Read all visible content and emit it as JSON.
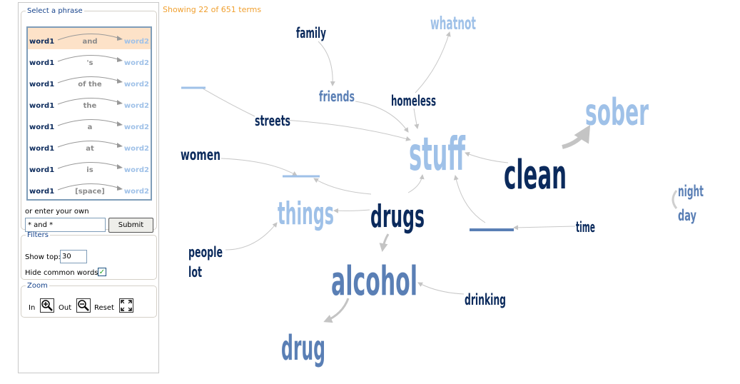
{
  "status_text": "Showing 22 of 651 terms",
  "phrase_panel": {
    "legend": "Select a phrase",
    "word1": "word1",
    "word2": "word2",
    "phrases": [
      "and",
      "'s",
      "of the",
      "the",
      "a",
      "at",
      "is",
      "[space]"
    ],
    "selected_index": 0,
    "enter_label": "or enter your own",
    "input_value": "* and *",
    "submit_label": "Submit"
  },
  "filters": {
    "legend": "Filters",
    "show_top_label": "Show top:",
    "show_top_value": "30",
    "hide_common_label": "Hide common words",
    "hide_common_checked": true,
    "check_glyph": "✓"
  },
  "zoom": {
    "legend": "Zoom",
    "in_label": "In",
    "out_label": "Out",
    "reset_label": "Reset",
    "icons": [
      "zoom-in-icon",
      "zoom-out-icon",
      "reset-icon"
    ]
  },
  "colors": {
    "dark": "#0b2a5c",
    "mid": "#5a7fb5",
    "light": "#9fc1e8",
    "selected_row": "#fde2c8",
    "status": "#f0a030"
  },
  "terms": {
    "family": "family",
    "whatnot": "whatnot",
    "friends": "friends",
    "homeless": "homeless",
    "sober": "sober",
    "streets": "streets",
    "stuff": "stuff",
    "clean": "clean",
    "women": "women",
    "things": "things",
    "drugs": "drugs",
    "night": "night",
    "day": "day",
    "time": "time",
    "people": "people",
    "lot": "lot",
    "alcohol": "alcohol",
    "drinking": "drinking",
    "drug": "drug"
  }
}
